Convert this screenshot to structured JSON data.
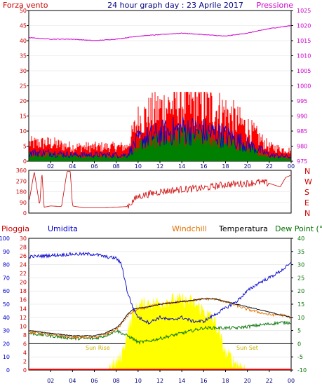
{
  "top_chart": {
    "title": "24 hour graph day : 23 Aprile 2017",
    "left_label": "Forza vento",
    "right_label": "Pressione",
    "left_ticks": [
      "0",
      "5",
      "10",
      "15",
      "20",
      "25",
      "30",
      "35",
      "40",
      "45",
      "50"
    ],
    "right_ticks": [
      "975",
      "980",
      "985",
      "990",
      "995",
      "1000",
      "1005",
      "1010",
      "1015",
      "1020",
      "1025"
    ],
    "hour_ticks": [
      "02",
      "04",
      "06",
      "08",
      "10",
      "12",
      "14",
      "16",
      "18",
      "20",
      "22",
      "00"
    ],
    "colors": {
      "gust": "#ff0000",
      "wind": "#0000cc",
      "avg": "#008000",
      "pressure": "#cc00cc",
      "axis_left": "#cc0000",
      "axis_right": "#cc00cc"
    }
  },
  "dir_chart": {
    "ticks": [
      "360",
      "270",
      "180",
      "90",
      "0"
    ],
    "compass": [
      "N",
      "W",
      "S",
      "E",
      "N"
    ],
    "colors": {
      "direction": "#cc0000"
    }
  },
  "bottom_chart": {
    "labels": {
      "rain": "Pioggia",
      "humidity": "Umidita",
      "windchill": "Windchill",
      "temperature": "Temperatura",
      "dewpoint": "Dew Point (°C"
    },
    "humidity_ticks": [
      "0",
      "10",
      "20",
      "30",
      "40",
      "50",
      "60",
      "70",
      "80",
      "90",
      "100"
    ],
    "rain_ticks": [
      "0",
      "2",
      "4",
      "6",
      "8",
      "10",
      "12",
      "14",
      "16",
      "18",
      "20",
      "22",
      "24",
      "26",
      "28",
      "30"
    ],
    "temp_ticks": [
      "-10",
      "-5",
      "0",
      "5",
      "10",
      "15",
      "20",
      "25",
      "30",
      "35",
      "40"
    ],
    "hour_ticks": [
      "02",
      "04",
      "06",
      "08",
      "10",
      "12",
      "14",
      "16",
      "18",
      "20",
      "22",
      "00"
    ],
    "sun_rise_label": "Sun Rise",
    "sun_set_label": "Sun Set",
    "colors": {
      "humidity": "#0000cc",
      "temperature": "#000000",
      "windchill": "#e07000",
      "dewpoint": "#007000",
      "solar": "#ffff00",
      "rain": "#ff0000"
    }
  },
  "chart_data": [
    {
      "type": "line",
      "title": "24 hour graph day : 23 Aprile 2017",
      "x": [
        0,
        2,
        4,
        6,
        8,
        9,
        10,
        12,
        14,
        16,
        18,
        20,
        22,
        24
      ],
      "series": [
        {
          "name": "Pressione",
          "axis": "right",
          "values": [
            1016,
            1015.5,
            1015.5,
            1015,
            1015.5,
            1016,
            1016.5,
            1017,
            1017.5,
            1017,
            1016.5,
            1017.5,
            1019,
            1020
          ]
        },
        {
          "name": "Forza vento",
          "axis": "left",
          "values": [
            4,
            4,
            3,
            3,
            3,
            3,
            10,
            13,
            15,
            14,
            12,
            8,
            3,
            2
          ]
        }
      ],
      "ylim_left": [
        0,
        50
      ],
      "ylim_right": [
        975,
        1025
      ]
    },
    {
      "type": "line",
      "x": [
        0,
        0.5,
        1,
        1.2,
        1.4,
        2,
        3,
        3.5,
        3.8,
        4,
        5,
        6,
        7,
        8,
        9,
        10,
        12,
        14,
        16,
        18,
        20,
        21,
        22,
        23,
        23.5,
        24
      ],
      "series": [
        {
          "name": "direction",
          "values": [
            80,
            350,
            60,
            350,
            50,
            60,
            55,
            350,
            350,
            60,
            45,
            45,
            45,
            50,
            55,
            140,
            180,
            200,
            210,
            240,
            250,
            260,
            250,
            220,
            300,
            320
          ]
        }
      ],
      "ylim": [
        0,
        360
      ]
    },
    {
      "type": "line",
      "x": [
        0,
        2,
        4,
        6,
        7,
        8,
        8.5,
        9,
        9.5,
        10,
        11,
        12,
        13,
        14,
        15,
        16,
        17,
        18,
        19,
        20,
        21,
        22,
        23,
        24
      ],
      "series": [
        {
          "name": "Umidita",
          "axis": "humidity",
          "values": [
            86,
            87,
            88,
            88,
            86,
            85,
            80,
            60,
            48,
            40,
            36,
            40,
            38,
            40,
            37,
            37,
            42,
            47,
            52,
            60,
            66,
            70,
            75,
            81
          ]
        },
        {
          "name": "Temperatura",
          "axis": "temp",
          "values": [
            5,
            4,
            3,
            3,
            4,
            6,
            8,
            11,
            13,
            13.5,
            14,
            15,
            15.5,
            16,
            16.5,
            17,
            17,
            16,
            15,
            14,
            13,
            12,
            11,
            10
          ]
        },
        {
          "name": "Windchill",
          "axis": "temp",
          "values": [
            4.5,
            3.5,
            2.5,
            2.5,
            3.5,
            5.5,
            7.5,
            10.5,
            12,
            13,
            14,
            15,
            15.5,
            16,
            16.5,
            17,
            17,
            16,
            14.5,
            13,
            12,
            11,
            11,
            10
          ]
        },
        {
          "name": "Dew Point (°C",
          "axis": "temp",
          "values": [
            4,
            3,
            2,
            2,
            3,
            5,
            4,
            3,
            2,
            0.5,
            1,
            2,
            3,
            4,
            5,
            6,
            6,
            6,
            6,
            6.5,
            7,
            7.5,
            8,
            8
          ]
        },
        {
          "name": "solar",
          "axis": "temp",
          "values": [
            -10,
            -10,
            -10,
            -10,
            -10,
            -8,
            -5,
            4,
            10,
            14,
            15,
            15,
            16,
            16,
            15,
            12,
            8,
            -4,
            -8,
            -10,
            -10,
            -10,
            -10,
            -10
          ]
        }
      ],
      "ylim_humidity": [
        0,
        100
      ],
      "ylim_rain": [
        0,
        30
      ],
      "ylim_temp": [
        -10,
        40
      ]
    }
  ]
}
